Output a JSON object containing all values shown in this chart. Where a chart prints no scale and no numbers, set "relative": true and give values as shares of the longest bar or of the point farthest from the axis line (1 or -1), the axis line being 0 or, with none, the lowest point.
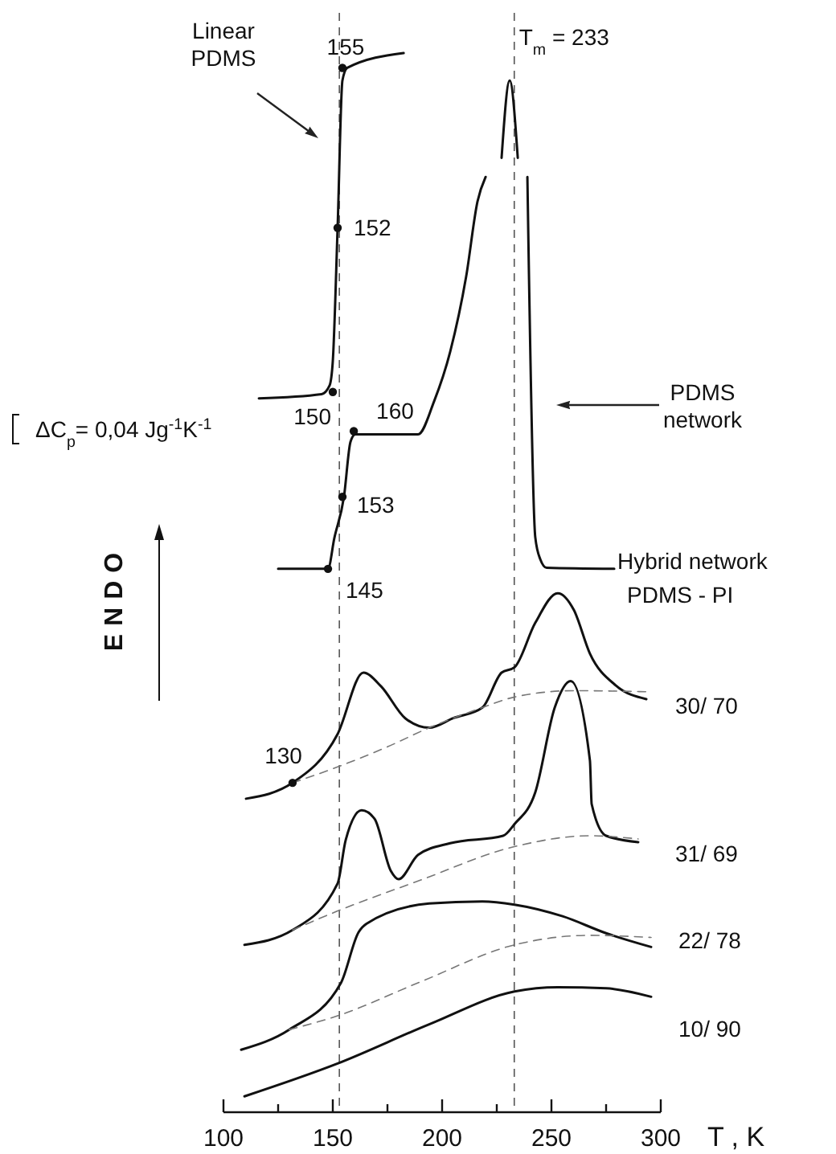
{
  "chart_data": {
    "type": "line",
    "relative": true,
    "xlabel": "T , K",
    "ylabel": "ENDO",
    "xlim": [
      100,
      300
    ],
    "xticks": [
      100,
      {
        "value": 125,
        "label": null
      },
      150,
      {
        "value": 175,
        "label": null
      },
      200,
      {
        "value": 225,
        "label": null
      },
      250,
      {
        "value": 275,
        "label": null
      },
      300
    ],
    "grid": false,
    "marker": "none",
    "series": [
      {
        "color": "#111111",
        "x": [
          116.2,
          144.9,
          148.5,
          150,
          152.2,
          154.4,
          156.6,
          182.4
        ],
        "values": [
          0.674,
          0.678,
          0.686,
          0.709,
          0.835,
          0.974,
          0.986,
          1.0
        ]
      },
      {
        "color": "#111111",
        "x": [
          125,
          144.9,
          147.8,
          150.7,
          155.1,
          158.1,
          160.3,
          174.3,
          189,
          196.3,
          203.7,
          211,
          216.2,
          219.9,
          223,
          227.2,
          230.9,
          234.6,
          237,
          239,
          242.6,
          244.9,
          247.8,
          278.7
        ],
        "values": [
          0.513,
          0.513,
          0.513,
          0.542,
          0.581,
          0.633,
          0.64,
          0.64,
          0.64,
          0.671,
          0.718,
          0.789,
          0.86,
          0.883,
          null,
          0.901,
          0.974,
          0.901,
          null,
          0.883,
          0.543,
          0.522,
          0.514,
          0.513
        ]
      },
      {
        "name": "30/ 70",
        "color": "#111111",
        "x": [
          110.3,
          131.6,
          152.2,
          164,
          172.1,
          183.1,
          194.1,
          205.1,
          218.4,
          227.2,
          233.1,
          242.6,
          252.9,
          260.3,
          267.6,
          279.4,
          293.4
        ],
        "values": [
          0.296,
          0.311,
          0.357,
          0.415,
          0.402,
          0.372,
          0.363,
          0.372,
          0.382,
          0.415,
          0.42,
          0.462,
          0.49,
          0.474,
          0.433,
          0.403,
          0.39
        ]
      },
      {
        "color": "#777777",
        "line_style": "dashed",
        "x": [
          131.6,
          152.2,
          175,
          194.1,
          218.4,
          233.1,
          260,
          293.4
        ],
        "values": [
          0.311,
          0.326,
          0.345,
          0.363,
          0.382,
          0.392,
          0.398,
          0.397
        ]
      },
      {
        "name": "31/ 69",
        "color": "#111111",
        "x": [
          109.6,
          131.6,
          152.2,
          155.9,
          163.2,
          169.1,
          176.5,
          180.1,
          189,
          203.7,
          227.9,
          233.1,
          242.6,
          251.5,
          258.8,
          267.6,
          268.4,
          275,
          289.7
        ],
        "values": [
          0.158,
          0.172,
          0.216,
          0.257,
          0.285,
          0.277,
          0.228,
          0.22,
          0.243,
          0.254,
          0.261,
          0.272,
          0.302,
          0.382,
          0.407,
          0.332,
          0.291,
          0.261,
          0.255
        ]
      },
      {
        "color": "#777777",
        "line_style": "dashed",
        "x": [
          131.6,
          152.2,
          190,
          231.6,
          267.6,
          289.7
        ],
        "values": [
          0.172,
          0.19,
          0.219,
          0.25,
          0.261,
          0.258
        ]
      },
      {
        "name": "22/ 78",
        "color": "#111111",
        "x": [
          108.1,
          130.1,
          153.7,
          161.8,
          165.4,
          194.1,
          218.4,
          233.1,
          255.1,
          275,
          295.6
        ],
        "values": [
          0.059,
          0.078,
          0.122,
          0.17,
          0.178,
          0.197,
          0.199,
          0.196,
          0.185,
          0.169,
          0.156
        ]
      },
      {
        "color": "#777777",
        "line_style": "dashed",
        "x": [
          130.1,
          152.2,
          190,
          233.1,
          267.6,
          295.6
        ],
        "values": [
          0.078,
          0.091,
          0.123,
          0.158,
          0.167,
          0.165
        ]
      },
      {
        "name": "10/ 90",
        "color": "#111111",
        "x": [
          109.6,
          152.2,
          194.1,
          233.1,
          252.9,
          275,
          295.6
        ],
        "values": [
          0.015,
          0.046,
          0.083,
          0.114,
          0.118,
          0.117,
          0.109
        ]
      }
    ],
    "ref_lines": [
      {
        "axis": "x",
        "value": 153,
        "line_style": "dashed",
        "color": "#555555"
      },
      {
        "axis": "x",
        "value": 233,
        "line_style": "dashed",
        "color": "#555555"
      }
    ],
    "annotations": [
      {
        "text": "155",
        "x": 154.4,
        "y": 0.986
      },
      {
        "text": "152",
        "x": 152.2,
        "y": 0.835
      },
      {
        "text": "150",
        "x": 150,
        "y": 0.68
      },
      {
        "text": "160",
        "x": 159.6,
        "y": 0.643
      },
      {
        "text": "153",
        "x": 154.4,
        "y": 0.581
      },
      {
        "text": "145",
        "x": 147.8,
        "y": 0.513
      },
      {
        "text": "130",
        "x": 131.6,
        "y": 0.311
      },
      {
        "text": "T$_{m}$ = 233",
        "x": 233,
        "y": 0.974
      },
      "ΔC$_{p}$= 0,04 Jg$^{-1}$K$^{-1}$",
      "Hybrid network",
      "PDMS - PI",
      "Linear PDMS",
      "PDMS network"
    ]
  }
}
